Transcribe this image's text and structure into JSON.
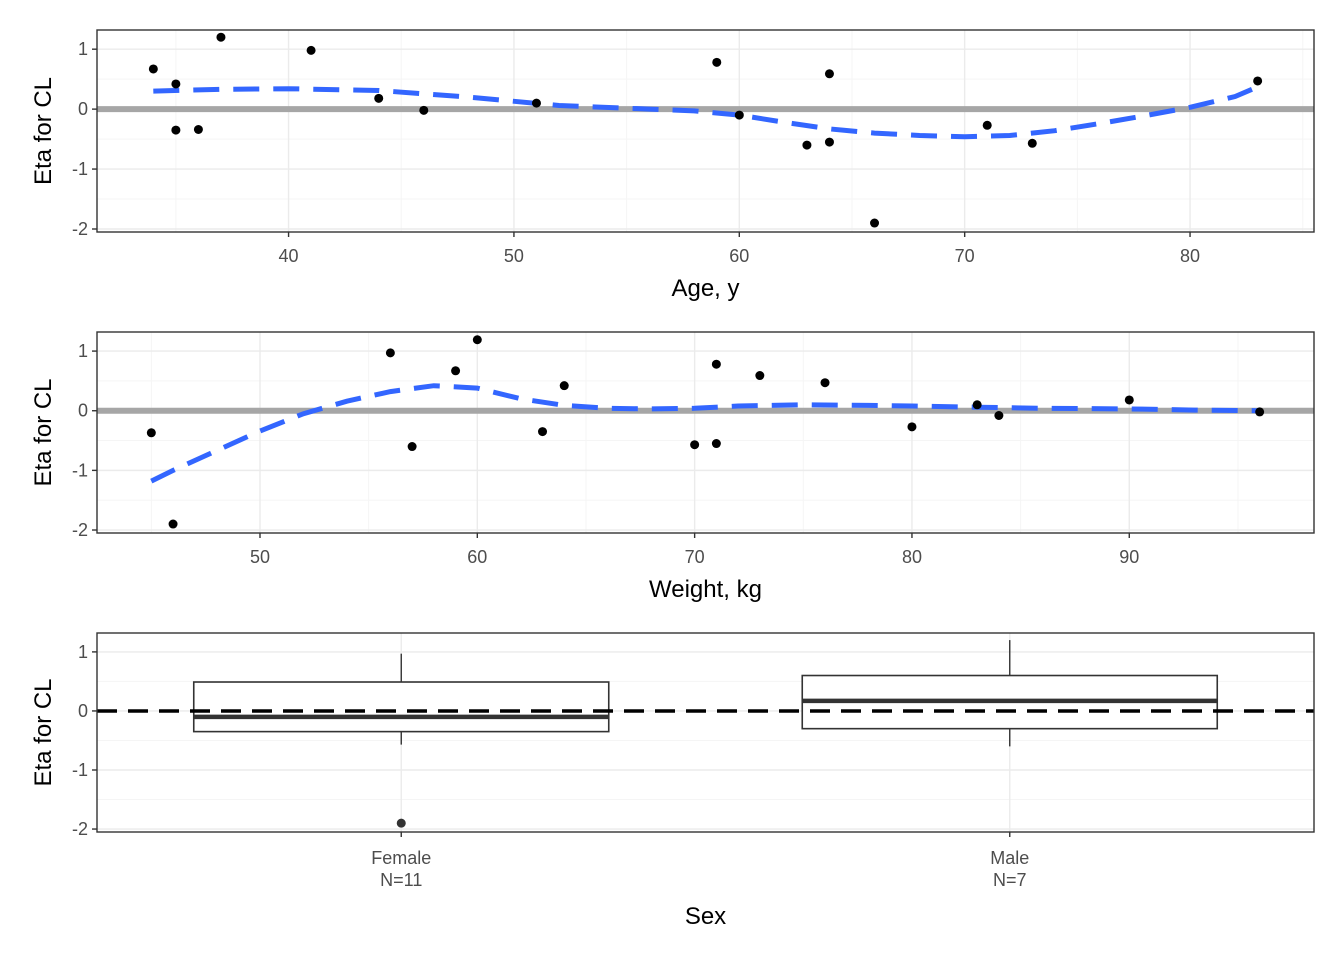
{
  "colors": {
    "panel_border": "#333333",
    "grid_major": "#ebebeb",
    "grid_minor": "#f5f5f5",
    "reference_line": "#a6a6a6",
    "smooth_line": "#3366ff",
    "point": "#000000",
    "box": "#333333"
  },
  "chart_data": [
    {
      "type": "scatter",
      "xlabel": "Age, y",
      "ylabel": "Eta for CL",
      "xlim": [
        31.5,
        85.5
      ],
      "ylim": [
        -2.05,
        1.32
      ],
      "x_ticks": [
        40,
        50,
        60,
        70,
        80
      ],
      "y_ticks": [
        -2,
        -1,
        0,
        1
      ],
      "grid": true,
      "reference_line": {
        "y": 0,
        "style": "solid"
      },
      "points": [
        {
          "x": 34,
          "y": 0.67
        },
        {
          "x": 35,
          "y": 0.42
        },
        {
          "x": 35,
          "y": -0.35
        },
        {
          "x": 36,
          "y": -0.34
        },
        {
          "x": 37,
          "y": 1.2
        },
        {
          "x": 41,
          "y": 0.98
        },
        {
          "x": 44,
          "y": 0.18
        },
        {
          "x": 46,
          "y": -0.02
        },
        {
          "x": 51,
          "y": 0.1
        },
        {
          "x": 59,
          "y": 0.78
        },
        {
          "x": 60,
          "y": -0.1
        },
        {
          "x": 63,
          "y": -0.6
        },
        {
          "x": 64,
          "y": 0.59
        },
        {
          "x": 64,
          "y": -0.55
        },
        {
          "x": 66,
          "y": -1.9
        },
        {
          "x": 71,
          "y": -0.27
        },
        {
          "x": 73,
          "y": -0.57
        },
        {
          "x": 83,
          "y": 0.47
        }
      ],
      "smooth": {
        "x": [
          34,
          37,
          40,
          44,
          48,
          52,
          56,
          58,
          60,
          62,
          64,
          66,
          68,
          70,
          72,
          74,
          76,
          78,
          80,
          82,
          83
        ],
        "y": [
          0.3,
          0.33,
          0.34,
          0.31,
          0.2,
          0.06,
          0.0,
          -0.03,
          -0.1,
          -0.22,
          -0.33,
          -0.4,
          -0.44,
          -0.46,
          -0.44,
          -0.36,
          -0.24,
          -0.11,
          0.03,
          0.21,
          0.37
        ]
      }
    },
    {
      "type": "scatter",
      "xlabel": "Weight, kg",
      "ylabel": "Eta for CL",
      "xlim": [
        42.5,
        98.5
      ],
      "ylim": [
        -2.05,
        1.32
      ],
      "x_ticks": [
        50,
        60,
        70,
        80,
        90
      ],
      "y_ticks": [
        -2,
        -1,
        0,
        1
      ],
      "grid": true,
      "reference_line": {
        "y": 0,
        "style": "solid"
      },
      "points": [
        {
          "x": 45,
          "y": -0.37
        },
        {
          "x": 46,
          "y": -1.9
        },
        {
          "x": 56,
          "y": 0.97
        },
        {
          "x": 57,
          "y": -0.6
        },
        {
          "x": 59,
          "y": 0.67
        },
        {
          "x": 60,
          "y": 1.19
        },
        {
          "x": 63,
          "y": -0.35
        },
        {
          "x": 64,
          "y": 0.42
        },
        {
          "x": 70,
          "y": -0.57
        },
        {
          "x": 71,
          "y": 0.78
        },
        {
          "x": 71,
          "y": -0.55
        },
        {
          "x": 73,
          "y": 0.59
        },
        {
          "x": 76,
          "y": 0.47
        },
        {
          "x": 80,
          "y": -0.27
        },
        {
          "x": 83,
          "y": 0.1
        },
        {
          "x": 84,
          "y": -0.08
        },
        {
          "x": 90,
          "y": 0.18
        },
        {
          "x": 96,
          "y": -0.02
        }
      ],
      "smooth": {
        "x": [
          45,
          46,
          48,
          50,
          52,
          54,
          56,
          58,
          60,
          62,
          64,
          66,
          68,
          70,
          72,
          75,
          78,
          80,
          83,
          86,
          90,
          93,
          96
        ],
        "y": [
          -1.18,
          -1.0,
          -0.67,
          -0.34,
          -0.05,
          0.16,
          0.32,
          0.42,
          0.38,
          0.2,
          0.09,
          0.04,
          0.03,
          0.04,
          0.08,
          0.1,
          0.09,
          0.08,
          0.06,
          0.04,
          0.03,
          0.01,
          0.0
        ]
      }
    },
    {
      "type": "box",
      "xlabel": "Sex",
      "ylabel": "Eta for CL",
      "ylim": [
        -2.05,
        1.32
      ],
      "y_ticks": [
        -2,
        -1,
        0,
        1
      ],
      "grid": true,
      "reference_line": {
        "y": 0,
        "style": "dashed"
      },
      "categories": [
        "Female",
        "Male"
      ],
      "category_counts": [
        "N=11",
        "N=7"
      ],
      "boxes": [
        {
          "name": "Female",
          "q1": -0.35,
          "median": -0.1,
          "q3": 0.49,
          "whisker_low": -0.57,
          "whisker_high": 0.97,
          "outliers": [
            -1.9
          ]
        },
        {
          "name": "Male",
          "q1": -0.3,
          "median": 0.17,
          "q3": 0.6,
          "whisker_low": -0.6,
          "whisker_high": 1.2,
          "outliers": []
        }
      ]
    }
  ]
}
